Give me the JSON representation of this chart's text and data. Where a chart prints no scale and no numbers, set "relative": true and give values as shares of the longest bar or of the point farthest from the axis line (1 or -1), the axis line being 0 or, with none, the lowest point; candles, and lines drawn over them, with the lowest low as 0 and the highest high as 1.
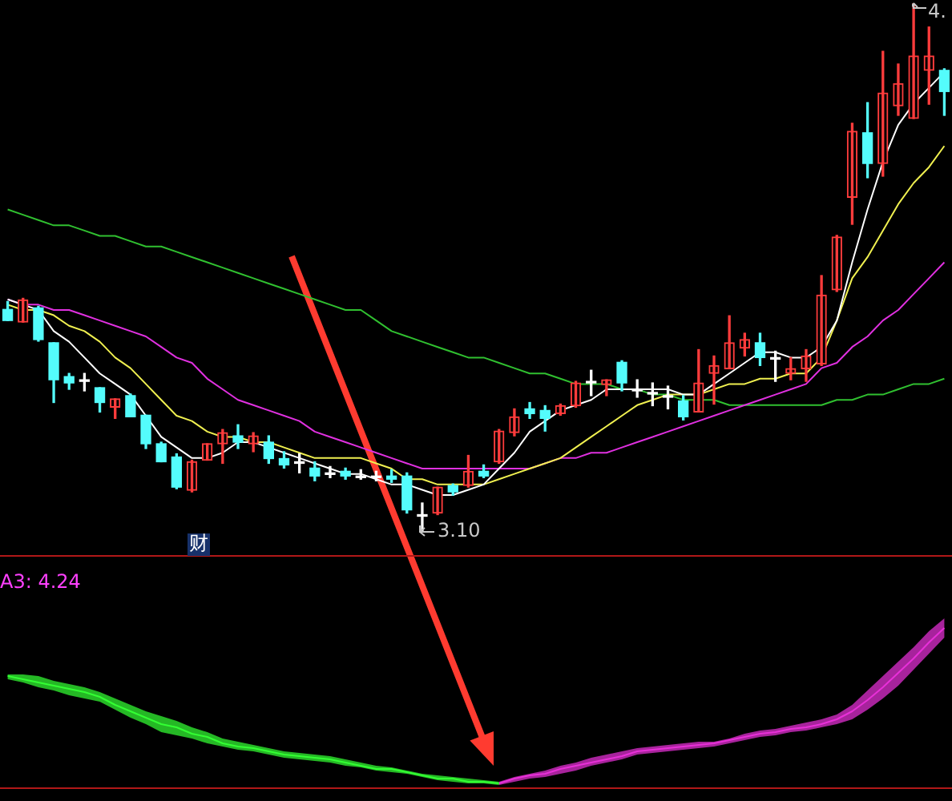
{
  "chart_data": [
    {
      "type": "candlestick",
      "relative": true,
      "tick_labels": false,
      "categories": [
        null,
        null,
        null,
        null,
        null,
        null,
        null,
        null,
        null,
        null,
        null,
        null,
        null,
        null,
        null,
        null,
        null,
        null,
        null,
        null,
        null,
        null,
        null,
        null,
        null,
        null,
        null,
        null,
        null,
        null,
        null,
        null,
        null,
        null,
        null,
        null,
        null,
        null,
        null,
        null,
        null,
        null,
        null,
        null,
        null,
        null,
        null,
        null,
        null,
        null,
        null,
        null,
        null,
        null,
        null,
        null,
        null,
        null,
        null,
        null,
        null,
        null
      ],
      "ohlc": [
        [
          0.421,
          0.436,
          0.4,
          0.4
        ],
        [
          0.397,
          0.442,
          0.397,
          0.439
        ],
        [
          0.424,
          0.427,
          0.361,
          0.364
        ],
        [
          0.358,
          0.358,
          0.245,
          0.288
        ],
        [
          0.294,
          0.3,
          0.27,
          0.282
        ],
        [
          0.288,
          0.3,
          0.267,
          0.288
        ],
        [
          0.273,
          0.273,
          0.227,
          0.245
        ],
        [
          0.236,
          0.252,
          0.215,
          0.252
        ],
        [
          0.258,
          0.261,
          0.218,
          0.218
        ],
        [
          0.221,
          0.221,
          0.158,
          0.167
        ],
        [
          0.167,
          0.17,
          0.133,
          0.133
        ],
        [
          0.142,
          0.148,
          0.082,
          0.085
        ],
        [
          0.079,
          0.136,
          0.076,
          0.133
        ],
        [
          0.136,
          0.167,
          0.136,
          0.167
        ],
        [
          0.167,
          0.194,
          0.13,
          0.188
        ],
        [
          0.182,
          0.203,
          0.158,
          0.17
        ],
        [
          0.167,
          0.188,
          0.152,
          0.182
        ],
        [
          0.17,
          0.182,
          0.13,
          0.139
        ],
        [
          0.139,
          0.152,
          0.121,
          0.127
        ],
        [
          0.133,
          0.148,
          0.112,
          0.133
        ],
        [
          0.121,
          0.133,
          0.097,
          0.106
        ],
        [
          0.112,
          0.124,
          0.103,
          0.112
        ],
        [
          0.115,
          0.121,
          0.1,
          0.106
        ],
        [
          0.106,
          0.118,
          0.1,
          0.106
        ],
        [
          0.106,
          0.115,
          0.097,
          0.106
        ],
        [
          0.106,
          0.118,
          0.094,
          0.1
        ],
        [
          0.106,
          0.112,
          0.036,
          0.042
        ],
        [
          0.033,
          0.055,
          0,
          0.033
        ],
        [
          0.036,
          0.085,
          0.033,
          0.085
        ],
        [
          0.088,
          0.091,
          0.07,
          0.076
        ],
        [
          0.088,
          0.145,
          0.085,
          0.115
        ],
        [
          0.115,
          0.127,
          0.103,
          0.106
        ],
        [
          0.133,
          0.194,
          0.13,
          0.191
        ],
        [
          0.188,
          0.233,
          0.182,
          0.218
        ],
        [
          0.233,
          0.245,
          0.215,
          0.224
        ],
        [
          0.23,
          0.239,
          0.191,
          0.215
        ],
        [
          0.224,
          0.242,
          0.221,
          0.239
        ],
        [
          0.239,
          0.285,
          0.236,
          0.282
        ],
        [
          0.285,
          0.306,
          0.258,
          0.285
        ],
        [
          0.279,
          0.288,
          0.258,
          0.288
        ],
        [
          0.321,
          0.324,
          0.267,
          0.282
        ],
        [
          0.27,
          0.288,
          0.255,
          0.27
        ],
        [
          0.264,
          0.282,
          0.239,
          0.264
        ],
        [
          0.258,
          0.276,
          0.233,
          0.258
        ],
        [
          0.248,
          0.258,
          0.212,
          0.218
        ],
        [
          0.227,
          0.345,
          0.227,
          0.282
        ],
        [
          0.3,
          0.333,
          0.242,
          0.315
        ],
        [
          0.309,
          0.409,
          0.309,
          0.358
        ],
        [
          0.348,
          0.376,
          0.333,
          0.364
        ],
        [
          0.358,
          0.376,
          0.315,
          0.33
        ],
        [
          0.33,
          0.342,
          0.285,
          0.33
        ],
        [
          0.3,
          0.33,
          0.288,
          0.309
        ],
        [
          0.309,
          0.345,
          0.285,
          0.333
        ],
        [
          0.318,
          0.485,
          0.315,
          0.448
        ],
        [
          0.458,
          0.561,
          0.455,
          0.558
        ],
        [
          0.633,
          0.773,
          0.582,
          0.758
        ],
        [
          0.755,
          0.812,
          0.67,
          0.697
        ],
        [
          0.697,
          0.909,
          0.673,
          0.83
        ],
        [
          0.806,
          0.885,
          0.788,
          0.848
        ],
        [
          0.782,
          1,
          0.782,
          0.9
        ],
        [
          0.873,
          0.955,
          0.809,
          0.9
        ],
        [
          0.873,
          0.876,
          0.788,
          0.833
        ]
      ],
      "colors": [
        "#54fcfc",
        "#ff3c3c",
        "#54fcfc",
        "#54fcfc",
        "#54fcfc",
        "#ffffff",
        "#54fcfc",
        "#ff3c3c",
        "#54fcfc",
        "#54fcfc",
        "#54fcfc",
        "#54fcfc",
        "#ff3c3c",
        "#ff3c3c",
        "#ff3c3c",
        "#54fcfc",
        "#ff3c3c",
        "#54fcfc",
        "#54fcfc",
        "#ffffff",
        "#54fcfc",
        "#ffffff",
        "#54fcfc",
        "#ffffff",
        "#ffffff",
        "#54fcfc",
        "#54fcfc",
        "#ffffff",
        "#ff3c3c",
        "#54fcfc",
        "#ff3c3c",
        "#54fcfc",
        "#ff3c3c",
        "#ff3c3c",
        "#54fcfc",
        "#54fcfc",
        "#ff3c3c",
        "#ff3c3c",
        "#ffffff",
        "#ff3c3c",
        "#54fcfc",
        "#ffffff",
        "#ffffff",
        "#ffffff",
        "#54fcfc",
        "#ff3c3c",
        "#ff3c3c",
        "#ff3c3c",
        "#ff3c3c",
        "#54fcfc",
        "#ffffff",
        "#ff3c3c",
        "#ff3c3c",
        "#ff3c3c",
        "#ff3c3c",
        "#ff3c3c",
        "#54fcfc",
        "#ff3c3c",
        "#ff3c3c",
        "#ff3c3c",
        "#ff3c3c",
        "#54fcfc"
      ],
      "series": [
        {
          "type": "line",
          "color": "#ffffff",
          "values": [
            0.44,
            0.43,
            0.42,
            0.38,
            0.36,
            0.33,
            0.3,
            0.28,
            0.26,
            0.22,
            0.18,
            0.16,
            0.14,
            0.14,
            0.15,
            0.17,
            0.17,
            0.16,
            0.15,
            0.14,
            0.13,
            0.12,
            0.11,
            0.11,
            0.1,
            0.09,
            0.09,
            0.08,
            0.07,
            0.07,
            0.08,
            0.09,
            0.12,
            0.15,
            0.19,
            0.21,
            0.23,
            0.24,
            0.25,
            0.27,
            0.27,
            0.27,
            0.27,
            0.27,
            0.26,
            0.26,
            0.28,
            0.3,
            0.32,
            0.34,
            0.34,
            0.33,
            0.33,
            0.35,
            0.4,
            0.51,
            0.61,
            0.7,
            0.77,
            0.81,
            0.84,
            0.87
          ]
        },
        {
          "type": "line",
          "color": "#f0f050",
          "values": [
            0.43,
            0.42,
            0.42,
            0.41,
            0.39,
            0.38,
            0.36,
            0.33,
            0.31,
            0.28,
            0.25,
            0.22,
            0.21,
            0.19,
            0.18,
            0.18,
            0.17,
            0.17,
            0.16,
            0.15,
            0.14,
            0.14,
            0.14,
            0.14,
            0.13,
            0.12,
            0.1,
            0.1,
            0.09,
            0.09,
            0.09,
            0.09,
            0.1,
            0.11,
            0.12,
            0.13,
            0.14,
            0.16,
            0.18,
            0.2,
            0.22,
            0.24,
            0.25,
            0.26,
            0.26,
            0.26,
            0.27,
            0.28,
            0.28,
            0.29,
            0.29,
            0.3,
            0.3,
            0.33,
            0.4,
            0.48,
            0.52,
            0.57,
            0.62,
            0.66,
            0.69,
            0.73
          ]
        },
        {
          "type": "line",
          "color": "#e030e0",
          "values": [
            0.44,
            0.43,
            0.43,
            0.42,
            0.42,
            0.41,
            0.4,
            0.39,
            0.38,
            0.37,
            0.35,
            0.33,
            0.32,
            0.29,
            0.27,
            0.25,
            0.24,
            0.23,
            0.22,
            0.21,
            0.19,
            0.18,
            0.17,
            0.16,
            0.15,
            0.14,
            0.13,
            0.12,
            0.12,
            0.12,
            0.12,
            0.12,
            0.12,
            0.12,
            0.12,
            0.13,
            0.14,
            0.14,
            0.15,
            0.15,
            0.16,
            0.17,
            0.18,
            0.19,
            0.2,
            0.21,
            0.22,
            0.23,
            0.24,
            0.25,
            0.26,
            0.27,
            0.28,
            0.31,
            0.32,
            0.35,
            0.37,
            0.4,
            0.42,
            0.45,
            0.48,
            0.51
          ]
        },
        {
          "type": "line",
          "color": "#30c030",
          "values": [
            0.61,
            0.6,
            0.59,
            0.58,
            0.58,
            0.57,
            0.56,
            0.56,
            0.55,
            0.54,
            0.54,
            0.53,
            0.52,
            0.51,
            0.5,
            0.49,
            0.48,
            0.47,
            0.46,
            0.45,
            0.44,
            0.43,
            0.42,
            0.42,
            0.4,
            0.38,
            0.37,
            0.36,
            0.35,
            0.34,
            0.33,
            0.33,
            0.32,
            0.31,
            0.3,
            0.3,
            0.29,
            0.28,
            0.28,
            0.28,
            0.27,
            0.27,
            0.26,
            0.26,
            0.25,
            0.25,
            0.25,
            0.24,
            0.24,
            0.24,
            0.24,
            0.24,
            0.24,
            0.24,
            0.25,
            0.25,
            0.26,
            0.26,
            0.27,
            0.28,
            0.28,
            0.29
          ]
        }
      ],
      "annotations": [
        "3.10",
        "4.",
        "财"
      ]
    },
    {
      "type": "line",
      "relative": true,
      "tick_labels": false,
      "categories": [
        null,
        null,
        null,
        null,
        null,
        null,
        null,
        null,
        null,
        null,
        null,
        null,
        null,
        null,
        null,
        null,
        null,
        null,
        null,
        null,
        null,
        null,
        null,
        null,
        null,
        null,
        null,
        null,
        null,
        null,
        null,
        null,
        null,
        null,
        null,
        null,
        null,
        null,
        null,
        null,
        null,
        null,
        null,
        null,
        null,
        null,
        null,
        null,
        null,
        null,
        null,
        null,
        null,
        null,
        null,
        null,
        null,
        null,
        null,
        null,
        null,
        null
      ],
      "series": [
        {
          "color": "#33ff33",
          "values": [
            0.7,
            0.68,
            0.66,
            0.64,
            0.62,
            0.6,
            0.57,
            0.52,
            0.48,
            0.44,
            0.4,
            0.38,
            0.34,
            0.32,
            0.28,
            0.26,
            0.25,
            0.23,
            0.21,
            0.2,
            0.19,
            0.18,
            0.16,
            0.14,
            0.12,
            0.12,
            0.1,
            0.08,
            0.06,
            0.06,
            0.04,
            0.04,
            0.03,
            null,
            null,
            null,
            null,
            null,
            null,
            null,
            null,
            null,
            null,
            null,
            null,
            null,
            null,
            null,
            null,
            null,
            null,
            null,
            null,
            null,
            null,
            null,
            null,
            null,
            null,
            null,
            null,
            null
          ],
          "lower": [
            0.68,
            0.66,
            0.63,
            0.61,
            0.58,
            0.56,
            0.54,
            0.49,
            0.44,
            0.4,
            0.35,
            0.33,
            0.31,
            0.28,
            0.26,
            0.24,
            0.23,
            0.21,
            0.19,
            0.18,
            0.17,
            0.16,
            0.14,
            0.13,
            0.11,
            0.1,
            0.09,
            0.07,
            0.05,
            0.04,
            0.03,
            0.03,
            0.02,
            null,
            null,
            null,
            null,
            null,
            null,
            null,
            null,
            null,
            null,
            null,
            null,
            null,
            null,
            null,
            null,
            null,
            null,
            null,
            null,
            null,
            null,
            null,
            null,
            null,
            null,
            null,
            null,
            null
          ],
          "upper": [
            0.71,
            0.71,
            0.7,
            0.67,
            0.65,
            0.63,
            0.6,
            0.56,
            0.52,
            0.48,
            0.45,
            0.42,
            0.38,
            0.35,
            0.31,
            0.29,
            0.27,
            0.25,
            0.23,
            0.22,
            0.21,
            0.2,
            0.18,
            0.16,
            0.14,
            0.13,
            0.11,
            0.09,
            0.08,
            0.07,
            0.06,
            0.05,
            0.04,
            null,
            null,
            null,
            null,
            null,
            null,
            null,
            null,
            null,
            null,
            null,
            null,
            null,
            null,
            null,
            null,
            null,
            null,
            null,
            null,
            null,
            null,
            null,
            null,
            null,
            null,
            null,
            null,
            null
          ]
        },
        {
          "color": "#e830d8",
          "values": [
            null,
            null,
            null,
            null,
            null,
            null,
            null,
            null,
            null,
            null,
            null,
            null,
            null,
            null,
            null,
            null,
            null,
            null,
            null,
            null,
            null,
            null,
            null,
            null,
            null,
            null,
            null,
            null,
            null,
            null,
            null,
            null,
            0.03,
            0.06,
            0.08,
            0.09,
            0.12,
            0.14,
            0.16,
            0.18,
            0.2,
            0.23,
            0.24,
            0.25,
            0.26,
            0.27,
            0.28,
            0.3,
            0.32,
            0.34,
            0.35,
            0.37,
            0.38,
            0.4,
            0.43,
            0.48,
            0.55,
            0.63,
            0.72,
            0.81,
            0.91,
            1.0
          ],
          "lower": [
            null,
            null,
            null,
            null,
            null,
            null,
            null,
            null,
            null,
            null,
            null,
            null,
            null,
            null,
            null,
            null,
            null,
            null,
            null,
            null,
            null,
            null,
            null,
            null,
            null,
            null,
            null,
            null,
            null,
            null,
            null,
            null,
            0.02,
            0.04,
            0.06,
            0.07,
            0.09,
            0.11,
            0.14,
            0.16,
            0.18,
            0.21,
            0.22,
            0.23,
            0.24,
            0.25,
            0.26,
            0.28,
            0.3,
            0.32,
            0.33,
            0.35,
            0.36,
            0.38,
            0.4,
            0.43,
            0.49,
            0.56,
            0.64,
            0.74,
            0.84,
            0.94
          ],
          "upper": [
            null,
            null,
            null,
            null,
            null,
            null,
            null,
            null,
            null,
            null,
            null,
            null,
            null,
            null,
            null,
            null,
            null,
            null,
            null,
            null,
            null,
            null,
            null,
            null,
            null,
            null,
            null,
            null,
            null,
            null,
            null,
            null,
            0.04,
            0.07,
            0.09,
            0.11,
            0.14,
            0.16,
            0.19,
            0.21,
            0.23,
            0.25,
            0.26,
            0.27,
            0.28,
            0.29,
            0.29,
            0.31,
            0.34,
            0.36,
            0.37,
            0.39,
            0.41,
            0.43,
            0.46,
            0.52,
            0.61,
            0.7,
            0.79,
            0.88,
            0.98,
            1.06
          ]
        }
      ],
      "annotations": [
        "A3: 4.24"
      ]
    }
  ]
}
